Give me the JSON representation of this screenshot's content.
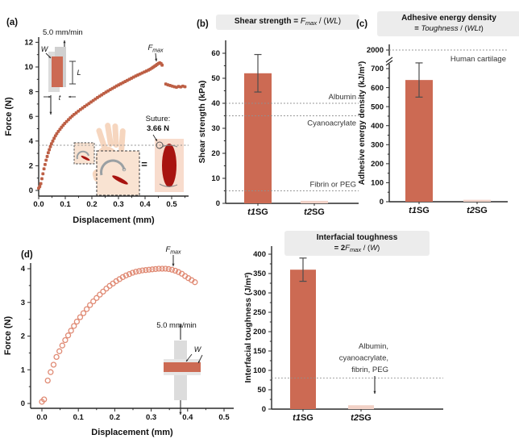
{
  "panels": {
    "a": {
      "label": "(a)"
    },
    "b": {
      "label": "(b)"
    },
    "c": {
      "label": "(c)"
    },
    "d": {
      "label": "(d)"
    }
  },
  "colors": {
    "marker_dark": "#bd5f45",
    "marker_light": "#e08b75",
    "bar_fill": "#cc6a53",
    "bar_faint": "#f2d2c7",
    "error_bar": "#4d4d4d",
    "ref_line": "#8f8f8f",
    "title_bg": "#ececec",
    "skin": "#f6d6bf",
    "skin_light": "#f9e3d2",
    "wound_red": "#a81410",
    "wound_bg": "#f8dccd",
    "needle_gray": "#9aa0a3",
    "schematic_gray": "#dcdcdc",
    "schematic_gray2": "#d0d0d0"
  },
  "chart_data": [
    {
      "id": "a",
      "type": "scatter",
      "xlabel": "Displacement (mm)",
      "ylabel": "Force (N)",
      "xlim": [
        0,
        0.57
      ],
      "ylim": [
        0,
        12.4
      ],
      "xticks": [
        "0.0",
        "0.1",
        "0.2",
        "0.3",
        "0.4",
        "0.5"
      ],
      "yticks": [
        0,
        2,
        4,
        6,
        8,
        10,
        12
      ],
      "marker": "square",
      "ref_line": {
        "value": 3.66
      },
      "annotations": {
        "rate_label": "5.0 mm/min",
        "fmax_segments": [
          {
            "text": "F",
            "style": "italic"
          },
          {
            "text": "max",
            "style": "sub"
          }
        ],
        "suture_label_line1": "Suture:",
        "suture_label_line2": "3.66 N",
        "equals_sign": "=",
        "schematic_labels": {
          "width": "W",
          "length": "L",
          "thickness": "t"
        }
      },
      "points": [
        [
          0.0,
          0.18
        ],
        [
          0.004,
          0.32
        ],
        [
          0.008,
          0.55
        ],
        [
          0.012,
          0.95
        ],
        [
          0.016,
          1.35
        ],
        [
          0.02,
          1.75
        ],
        [
          0.024,
          2.1
        ],
        [
          0.028,
          2.45
        ],
        [
          0.032,
          2.75
        ],
        [
          0.036,
          3.05
        ],
        [
          0.04,
          3.3
        ],
        [
          0.044,
          3.55
        ],
        [
          0.048,
          3.78
        ],
        [
          0.053,
          4.0
        ],
        [
          0.058,
          4.22
        ],
        [
          0.063,
          4.42
        ],
        [
          0.068,
          4.6
        ],
        [
          0.074,
          4.78
        ],
        [
          0.08,
          4.95
        ],
        [
          0.086,
          5.12
        ],
        [
          0.092,
          5.28
        ],
        [
          0.098,
          5.43
        ],
        [
          0.105,
          5.58
        ],
        [
          0.112,
          5.73
        ],
        [
          0.119,
          5.88
        ],
        [
          0.126,
          6.02
        ],
        [
          0.133,
          6.15
        ],
        [
          0.141,
          6.28
        ],
        [
          0.149,
          6.42
        ],
        [
          0.157,
          6.55
        ],
        [
          0.165,
          6.68
        ],
        [
          0.173,
          6.8
        ],
        [
          0.181,
          6.92
        ],
        [
          0.189,
          7.04
        ],
        [
          0.197,
          7.16
        ],
        [
          0.205,
          7.28
        ],
        [
          0.213,
          7.4
        ],
        [
          0.221,
          7.52
        ],
        [
          0.229,
          7.63
        ],
        [
          0.237,
          7.74
        ],
        [
          0.245,
          7.85
        ],
        [
          0.253,
          7.96
        ],
        [
          0.261,
          8.06
        ],
        [
          0.269,
          8.16
        ],
        [
          0.277,
          8.26
        ],
        [
          0.285,
          8.36
        ],
        [
          0.293,
          8.46
        ],
        [
          0.301,
          8.55
        ],
        [
          0.309,
          8.64
        ],
        [
          0.317,
          8.73
        ],
        [
          0.325,
          8.82
        ],
        [
          0.333,
          8.91
        ],
        [
          0.341,
          9.0
        ],
        [
          0.349,
          9.09
        ],
        [
          0.357,
          9.18
        ],
        [
          0.365,
          9.27
        ],
        [
          0.373,
          9.35
        ],
        [
          0.381,
          9.43
        ],
        [
          0.389,
          9.51
        ],
        [
          0.397,
          9.59
        ],
        [
          0.405,
          9.67
        ],
        [
          0.413,
          9.75
        ],
        [
          0.419,
          9.82
        ],
        [
          0.425,
          9.9
        ],
        [
          0.43,
          9.97
        ],
        [
          0.435,
          10.05
        ],
        [
          0.44,
          10.12
        ],
        [
          0.445,
          10.2
        ],
        [
          0.45,
          10.28
        ],
        [
          0.455,
          10.33
        ],
        [
          0.46,
          10.28
        ],
        [
          0.464,
          10.15
        ],
        [
          0.478,
          8.62
        ],
        [
          0.486,
          8.55
        ],
        [
          0.494,
          8.5
        ],
        [
          0.502,
          8.45
        ],
        [
          0.51,
          8.4
        ],
        [
          0.518,
          8.36
        ],
        [
          0.526,
          8.42
        ],
        [
          0.534,
          8.38
        ],
        [
          0.542,
          8.45
        ],
        [
          0.55,
          8.4
        ]
      ]
    },
    {
      "id": "b",
      "type": "bar",
      "title_line1_segments": [
        {
          "text": "Shear strength = ",
          "style": "bold"
        },
        {
          "text": "F",
          "style": "italic"
        },
        {
          "text": "max",
          "style": "sub"
        },
        {
          "text": " / (",
          "style": "plain"
        },
        {
          "text": "WL",
          "style": "italic"
        },
        {
          "text": ")",
          "style": "plain"
        }
      ],
      "ylabel": "Shear strength (kPa)",
      "categories": [
        [
          {
            "text": "t1",
            "style": "bolditalic"
          },
          {
            "text": "SG",
            "style": "bold"
          }
        ],
        [
          {
            "text": "t2",
            "style": "bolditalic"
          },
          {
            "text": "SG",
            "style": "bold"
          }
        ]
      ],
      "values": [
        52,
        1
      ],
      "errors": [
        7.5,
        0
      ],
      "ylim": [
        0,
        65
      ],
      "yticks": [
        0,
        10,
        20,
        30,
        40,
        50,
        60
      ],
      "ref_lines": [
        {
          "value": 40,
          "label": "Albumin",
          "side": "above"
        },
        {
          "value": 35,
          "label": "Cyanoacrylate",
          "side": "below"
        },
        {
          "value": 5,
          "label": "Fibrin or PEG",
          "side": "above"
        }
      ]
    },
    {
      "id": "c",
      "type": "bar-broken",
      "title_line1_segments": [
        {
          "text": "Adhesive energy density",
          "style": "bold"
        }
      ],
      "title_line2_segments": [
        {
          "text": "= ",
          "style": "bold"
        },
        {
          "text": "Toughness",
          "style": "italic"
        },
        {
          "text": " / (",
          "style": "plain"
        },
        {
          "text": "WLt",
          "style": "italic"
        },
        {
          "text": ")",
          "style": "plain"
        }
      ],
      "ylabel": "Adhesive energy density (kJ/m³)",
      "categories": [
        [
          {
            "text": "t1",
            "style": "bolditalic"
          },
          {
            "text": "SG",
            "style": "bold"
          }
        ],
        [
          {
            "text": "t2",
            "style": "bolditalic"
          },
          {
            "text": "SG",
            "style": "bold"
          }
        ]
      ],
      "values": [
        640,
        10
      ],
      "errors": [
        90,
        0
      ],
      "ylim": [
        0,
        760
      ],
      "yticks": [
        0,
        100,
        200,
        300,
        400,
        500,
        600,
        700
      ],
      "break_tick": 2000,
      "ref_line": {
        "value": 2000,
        "label": "Human cartilage"
      }
    },
    {
      "id": "d",
      "type": "scatter",
      "xlabel": "Displacement (mm)",
      "ylabel": "Force (N)",
      "xlim": [
        0,
        0.5
      ],
      "ylim": [
        0,
        4.3
      ],
      "xticks": [
        "0.0",
        "0.1",
        "0.2",
        "0.3",
        "0.4",
        "0.5"
      ],
      "yticks": [
        0,
        1,
        2,
        3,
        4
      ],
      "marker": "circle",
      "annotations": {
        "rate_label": "5.0 mm/min",
        "fmax_segments": [
          {
            "text": "F",
            "style": "italic"
          },
          {
            "text": "max",
            "style": "sub"
          }
        ],
        "schematic_labels": {
          "width": "W"
        }
      },
      "points": [
        [
          0.0,
          0.05
        ],
        [
          0.006,
          0.12
        ],
        [
          0.016,
          0.68
        ],
        [
          0.024,
          0.93
        ],
        [
          0.032,
          1.15
        ],
        [
          0.04,
          1.38
        ],
        [
          0.048,
          1.55
        ],
        [
          0.056,
          1.72
        ],
        [
          0.064,
          1.88
        ],
        [
          0.072,
          2.02
        ],
        [
          0.08,
          2.16
        ],
        [
          0.088,
          2.3
        ],
        [
          0.096,
          2.43
        ],
        [
          0.105,
          2.56
        ],
        [
          0.114,
          2.68
        ],
        [
          0.123,
          2.8
        ],
        [
          0.132,
          2.92
        ],
        [
          0.141,
          3.03
        ],
        [
          0.15,
          3.13
        ],
        [
          0.159,
          3.23
        ],
        [
          0.168,
          3.32
        ],
        [
          0.177,
          3.41
        ],
        [
          0.186,
          3.49
        ],
        [
          0.195,
          3.56
        ],
        [
          0.204,
          3.63
        ],
        [
          0.213,
          3.69
        ],
        [
          0.222,
          3.75
        ],
        [
          0.231,
          3.8
        ],
        [
          0.24,
          3.84
        ],
        [
          0.249,
          3.88
        ],
        [
          0.258,
          3.91
        ],
        [
          0.267,
          3.93
        ],
        [
          0.276,
          3.95
        ],
        [
          0.285,
          3.96
        ],
        [
          0.294,
          3.97
        ],
        [
          0.303,
          3.98
        ],
        [
          0.312,
          3.99
        ],
        [
          0.321,
          4.0
        ],
        [
          0.33,
          4.0
        ],
        [
          0.339,
          4.0
        ],
        [
          0.348,
          3.99
        ],
        [
          0.357,
          3.97
        ],
        [
          0.366,
          3.94
        ],
        [
          0.375,
          3.9
        ],
        [
          0.384,
          3.85
        ],
        [
          0.393,
          3.78
        ],
        [
          0.402,
          3.72
        ],
        [
          0.411,
          3.66
        ],
        [
          0.42,
          3.6
        ]
      ]
    },
    {
      "id": "e",
      "type": "bar",
      "title_line1_segments": [
        {
          "text": "Interfacial toughness",
          "style": "bold"
        }
      ],
      "title_line2_segments": [
        {
          "text": "= 2",
          "style": "bold"
        },
        {
          "text": "F",
          "style": "italic"
        },
        {
          "text": "max",
          "style": "sub"
        },
        {
          "text": " / (",
          "style": "plain"
        },
        {
          "text": "W",
          "style": "italic"
        },
        {
          "text": ")",
          "style": "plain"
        }
      ],
      "ylabel": "Interfacial toughness (J/m²)",
      "categories": [
        [
          {
            "text": "t1",
            "style": "bolditalic"
          },
          {
            "text": "SG",
            "style": "bold"
          }
        ],
        [
          {
            "text": "t2",
            "style": "bolditalic"
          },
          {
            "text": "SG",
            "style": "bold"
          }
        ]
      ],
      "values": [
        360,
        10
      ],
      "errors": [
        30,
        0
      ],
      "ylim": [
        0,
        400
      ],
      "yticks": [
        0,
        50,
        100,
        150,
        200,
        250,
        300,
        350,
        400
      ],
      "ref_lines": [
        {
          "value": 80,
          "label_lines": [
            "Albumin,",
            "cyanoacrylate,",
            "fibrin, PEG"
          ],
          "arrow": true
        }
      ]
    }
  ]
}
